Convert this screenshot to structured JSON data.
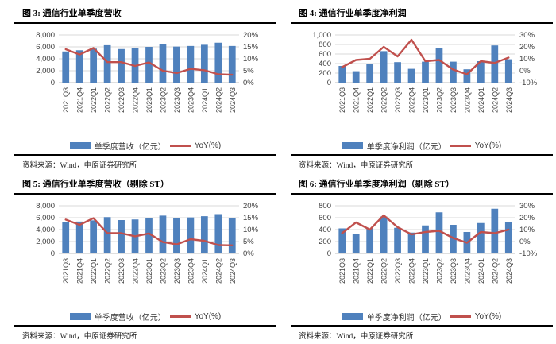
{
  "colors": {
    "bar": "#4F81BD",
    "line": "#C0504D",
    "grid": "#D9D9D9",
    "axis_line": "#BFBFBF",
    "axis_text": "#404040"
  },
  "source_note": "资料来源：Wind，中原证券研究所",
  "chart_data": [
    {
      "type": "bar+line",
      "title": "图 3: 通信行业单季度营收",
      "source": "资料来源：Wind，中原证券研究所",
      "categories": [
        "2021Q3",
        "2021Q4",
        "2022Q1",
        "2022Q2",
        "2022Q3",
        "2022Q4",
        "2023Q1",
        "2023Q2",
        "2023Q3",
        "2023Q4",
        "2024Q1",
        "2024Q2",
        "2024Q3"
      ],
      "series": [
        {
          "name": "单季度营收（亿元）",
          "type": "bar",
          "axis": "left",
          "values": [
            5230,
            5430,
            5700,
            6280,
            5630,
            5760,
            6000,
            6500,
            6050,
            6150,
            6350,
            6700,
            6150
          ]
        },
        {
          "name": "YoY(%)",
          "type": "line",
          "axis": "right",
          "values": [
            14,
            11.8,
            14.5,
            8.6,
            8.6,
            7,
            8.5,
            5,
            4,
            5.8,
            5.2,
            3.5,
            3.3
          ]
        }
      ],
      "left_axis": {
        "min": 0,
        "max": 8000,
        "ticks": [
          0,
          2000,
          4000,
          6000,
          8000
        ],
        "labels": [
          "0",
          "2,000",
          "4,000",
          "6,000",
          "8,000"
        ]
      },
      "right_axis": {
        "min": 0,
        "max": 20,
        "ticks": [
          0,
          5,
          10,
          15,
          20
        ],
        "labels": [
          "0%",
          "5%",
          "10%",
          "15%",
          "20%"
        ]
      }
    },
    {
      "type": "bar+line",
      "title": "图 4: 通信行业单季度净利润",
      "source": "资料来源：Wind，中原证券研究所",
      "categories": [
        "2021Q3",
        "2021Q4",
        "2022Q1",
        "2022Q2",
        "2022Q3",
        "2022Q4",
        "2023Q1",
        "2023Q2",
        "2023Q3",
        "2023Q4",
        "2024Q1",
        "2024Q2",
        "2024Q3"
      ],
      "series": [
        {
          "name": "单季度净利润（亿元）",
          "type": "bar",
          "axis": "left",
          "values": [
            350,
            240,
            400,
            660,
            430,
            290,
            440,
            720,
            440,
            280,
            450,
            780,
            490
          ]
        },
        {
          "name": "YoY(%)",
          "type": "line",
          "axis": "right",
          "values": [
            3,
            9,
            10,
            20,
            12,
            26,
            8,
            9,
            1,
            -3,
            8,
            6.5,
            11
          ]
        }
      ],
      "left_axis": {
        "min": 0,
        "max": 1000,
        "ticks": [
          0,
          200,
          400,
          600,
          800,
          1000
        ],
        "labels": [
          "0",
          "200",
          "400",
          "600",
          "800",
          "1,000"
        ]
      },
      "right_axis": {
        "min": -10,
        "max": 30,
        "ticks": [
          -10,
          0,
          10,
          20,
          30
        ],
        "labels": [
          "-10%",
          "0%",
          "10%",
          "20%",
          "30%"
        ]
      }
    },
    {
      "type": "bar+line",
      "title": "图 5: 通信行业单季度营收（剔除 ST）",
      "source": "资料来源：Wind，中原证券研究所",
      "categories": [
        "2021Q3",
        "2021Q4",
        "2022Q1",
        "2022Q2",
        "2022Q3",
        "2022Q4",
        "2023Q1",
        "2023Q2",
        "2023Q3",
        "2023Q4",
        "2024Q1",
        "2024Q2",
        "2024Q3"
      ],
      "series": [
        {
          "name": "单季度营收（亿元）",
          "type": "bar",
          "axis": "left",
          "values": [
            5200,
            5350,
            5550,
            6100,
            5600,
            5700,
            5950,
            6350,
            5900,
            6050,
            6250,
            6600,
            6000
          ]
        },
        {
          "name": "YoY(%)",
          "type": "line",
          "axis": "right",
          "values": [
            14.2,
            12,
            14.8,
            8.5,
            8.5,
            7.2,
            8.4,
            4.8,
            3.8,
            6,
            5.3,
            3.5,
            3.4
          ]
        }
      ],
      "left_axis": {
        "min": 0,
        "max": 8000,
        "ticks": [
          0,
          2000,
          4000,
          6000,
          8000
        ],
        "labels": [
          "0",
          "2,000",
          "4,000",
          "6,000",
          "8,000"
        ]
      },
      "right_axis": {
        "min": 0,
        "max": 20,
        "ticks": [
          0,
          5,
          10,
          15,
          20
        ],
        "labels": [
          "0%",
          "5%",
          "10%",
          "15%",
          "20%"
        ]
      }
    },
    {
      "type": "bar+line",
      "title": "图 6: 通信行业单季度净利润（剔除 ST）",
      "source": "资料来源：Wind，中原证券研究所",
      "categories": [
        "2021Q3",
        "2021Q4",
        "2022Q1",
        "2022Q2",
        "2022Q3",
        "2022Q4",
        "2023Q1",
        "2023Q2",
        "2023Q3",
        "2023Q4",
        "2024Q1",
        "2024Q2",
        "2024Q3"
      ],
      "series": [
        {
          "name": "单季度净利润（亿元）",
          "type": "bar",
          "axis": "left",
          "values": [
            420,
            330,
            420,
            620,
            430,
            350,
            470,
            690,
            480,
            360,
            510,
            750,
            530
          ]
        },
        {
          "name": "YoY(%)",
          "type": "line",
          "axis": "right",
          "values": [
            7,
            16,
            10,
            22,
            12,
            6,
            8,
            9,
            3,
            -1,
            8,
            7,
            10
          ]
        }
      ],
      "left_axis": {
        "min": 0,
        "max": 800,
        "ticks": [
          0,
          200,
          400,
          600,
          800
        ],
        "labels": [
          "0",
          "200",
          "400",
          "600",
          "800"
        ]
      },
      "right_axis": {
        "min": -10,
        "max": 30,
        "ticks": [
          -10,
          0,
          10,
          20,
          30
        ],
        "labels": [
          "-10%",
          "0%",
          "10%",
          "20%",
          "30%"
        ]
      }
    }
  ]
}
